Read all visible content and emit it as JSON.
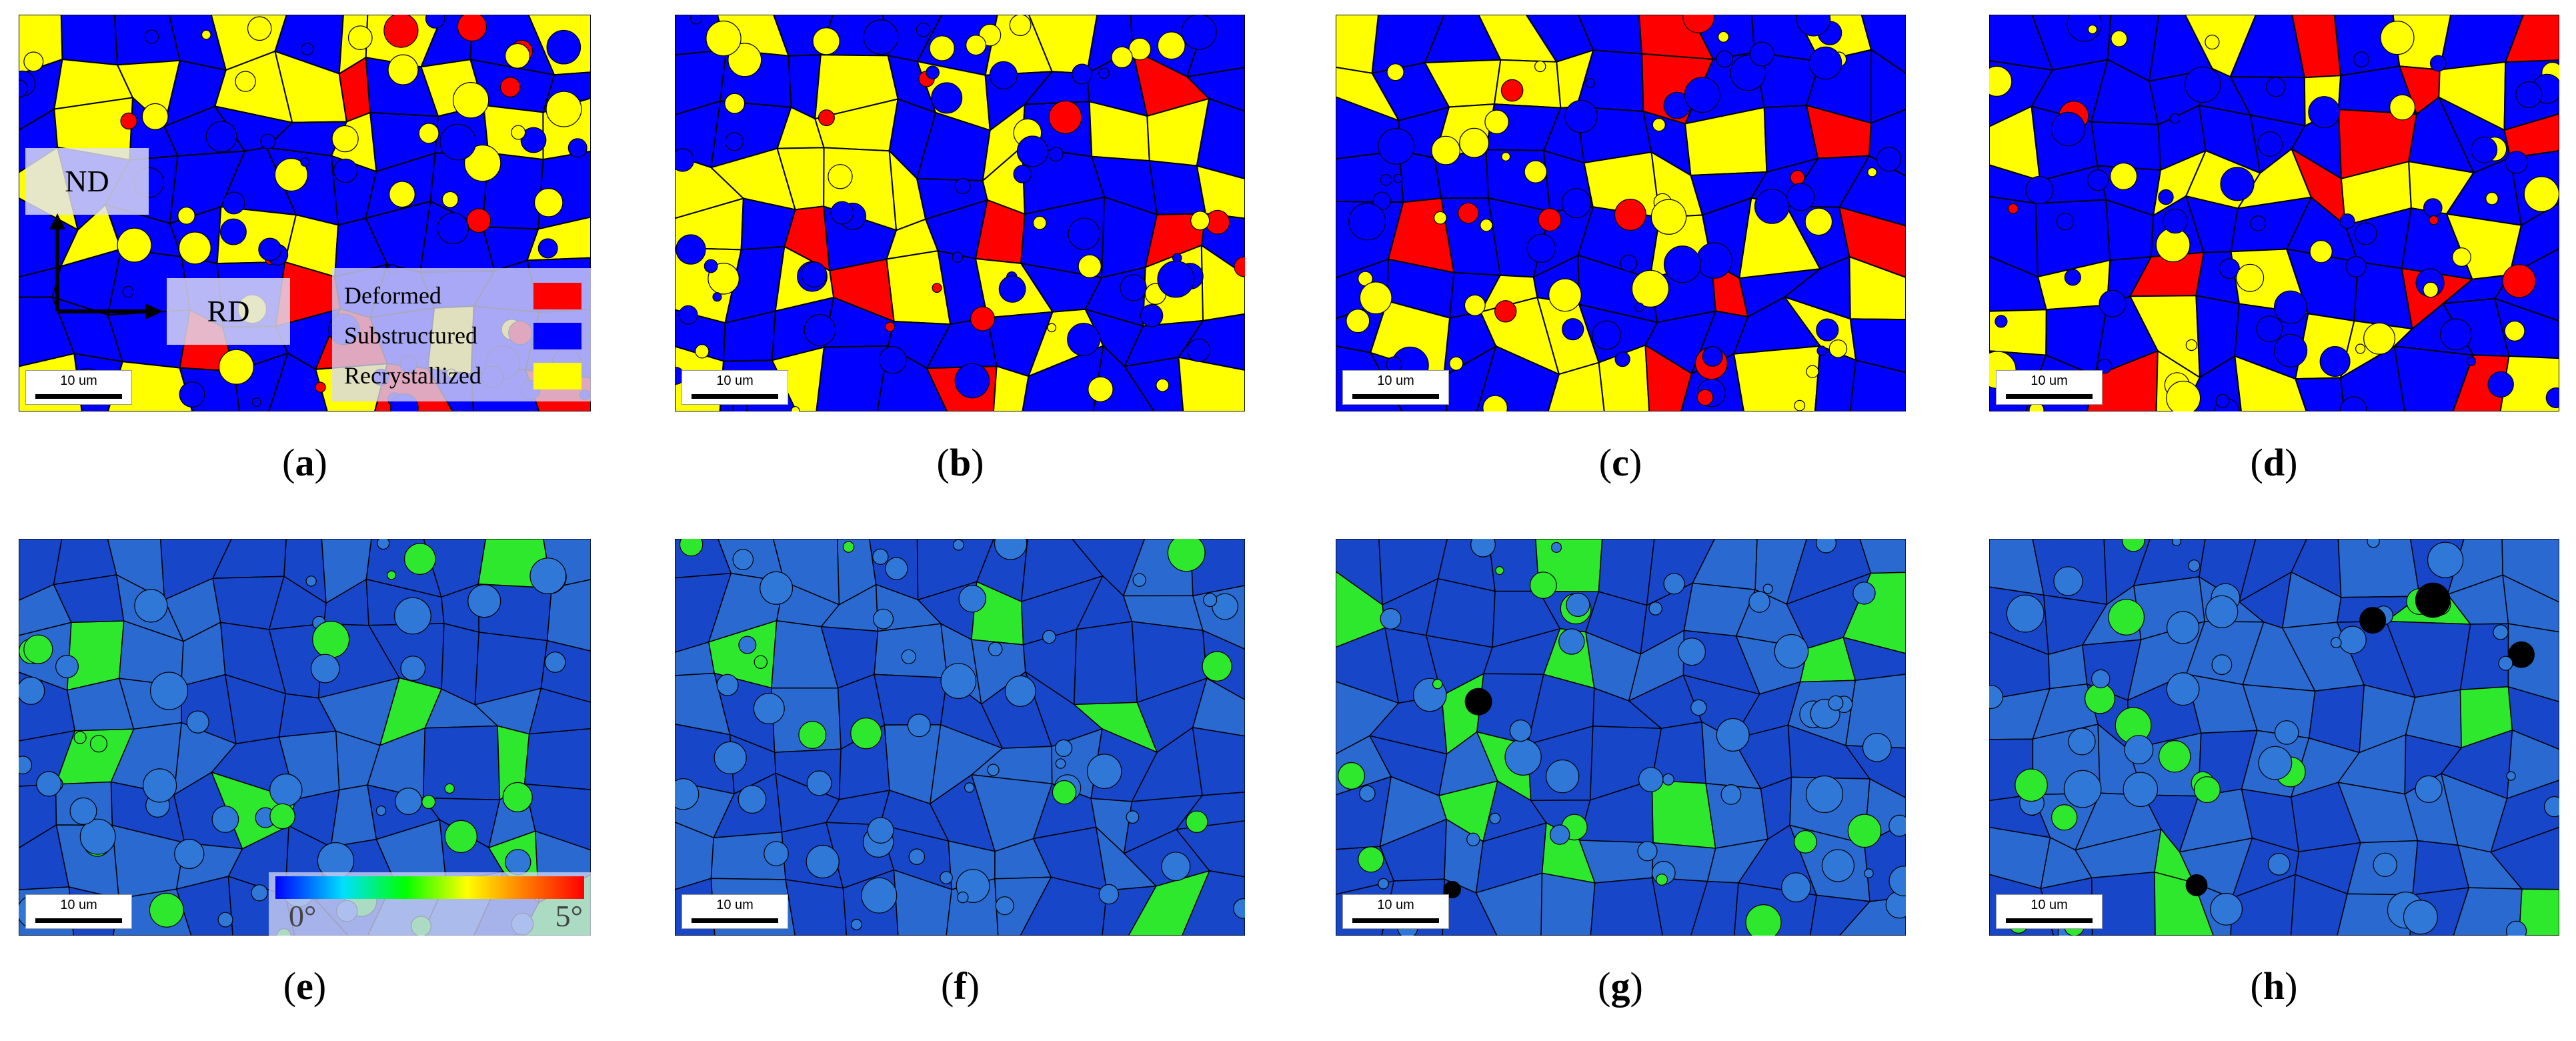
{
  "colors": {
    "deformed": "#ff0000",
    "substructured": "#0000ff",
    "recrystallized": "#ffff00",
    "boundary": "#000000",
    "kam_base": "#1746c8",
    "kam_high": "#2ee82e"
  },
  "panels": [
    {
      "id": "a",
      "caption": "a",
      "kind": "phase",
      "scale_label": "10 um"
    },
    {
      "id": "b",
      "caption": "b",
      "kind": "phase",
      "scale_label": "10 um"
    },
    {
      "id": "c",
      "caption": "c",
      "kind": "phase",
      "scale_label": "10 um"
    },
    {
      "id": "d",
      "caption": "d",
      "kind": "phase",
      "scale_label": "10 um"
    },
    {
      "id": "e",
      "caption": "e",
      "kind": "kam",
      "scale_label": "10 um"
    },
    {
      "id": "f",
      "caption": "f",
      "kind": "kam",
      "scale_label": "10 um"
    },
    {
      "id": "g",
      "caption": "g",
      "kind": "kam",
      "scale_label": "10 um"
    },
    {
      "id": "h",
      "caption": "h",
      "kind": "kam",
      "scale_label": "10 um"
    }
  ],
  "axes": {
    "nd": "ND",
    "rd": "RD"
  },
  "legend": {
    "deformed": "Deformed",
    "substructured": "Substructured",
    "recrystallized": "Recrystallized"
  },
  "colorbar": {
    "min_label": "0°",
    "max_label": "5°"
  }
}
